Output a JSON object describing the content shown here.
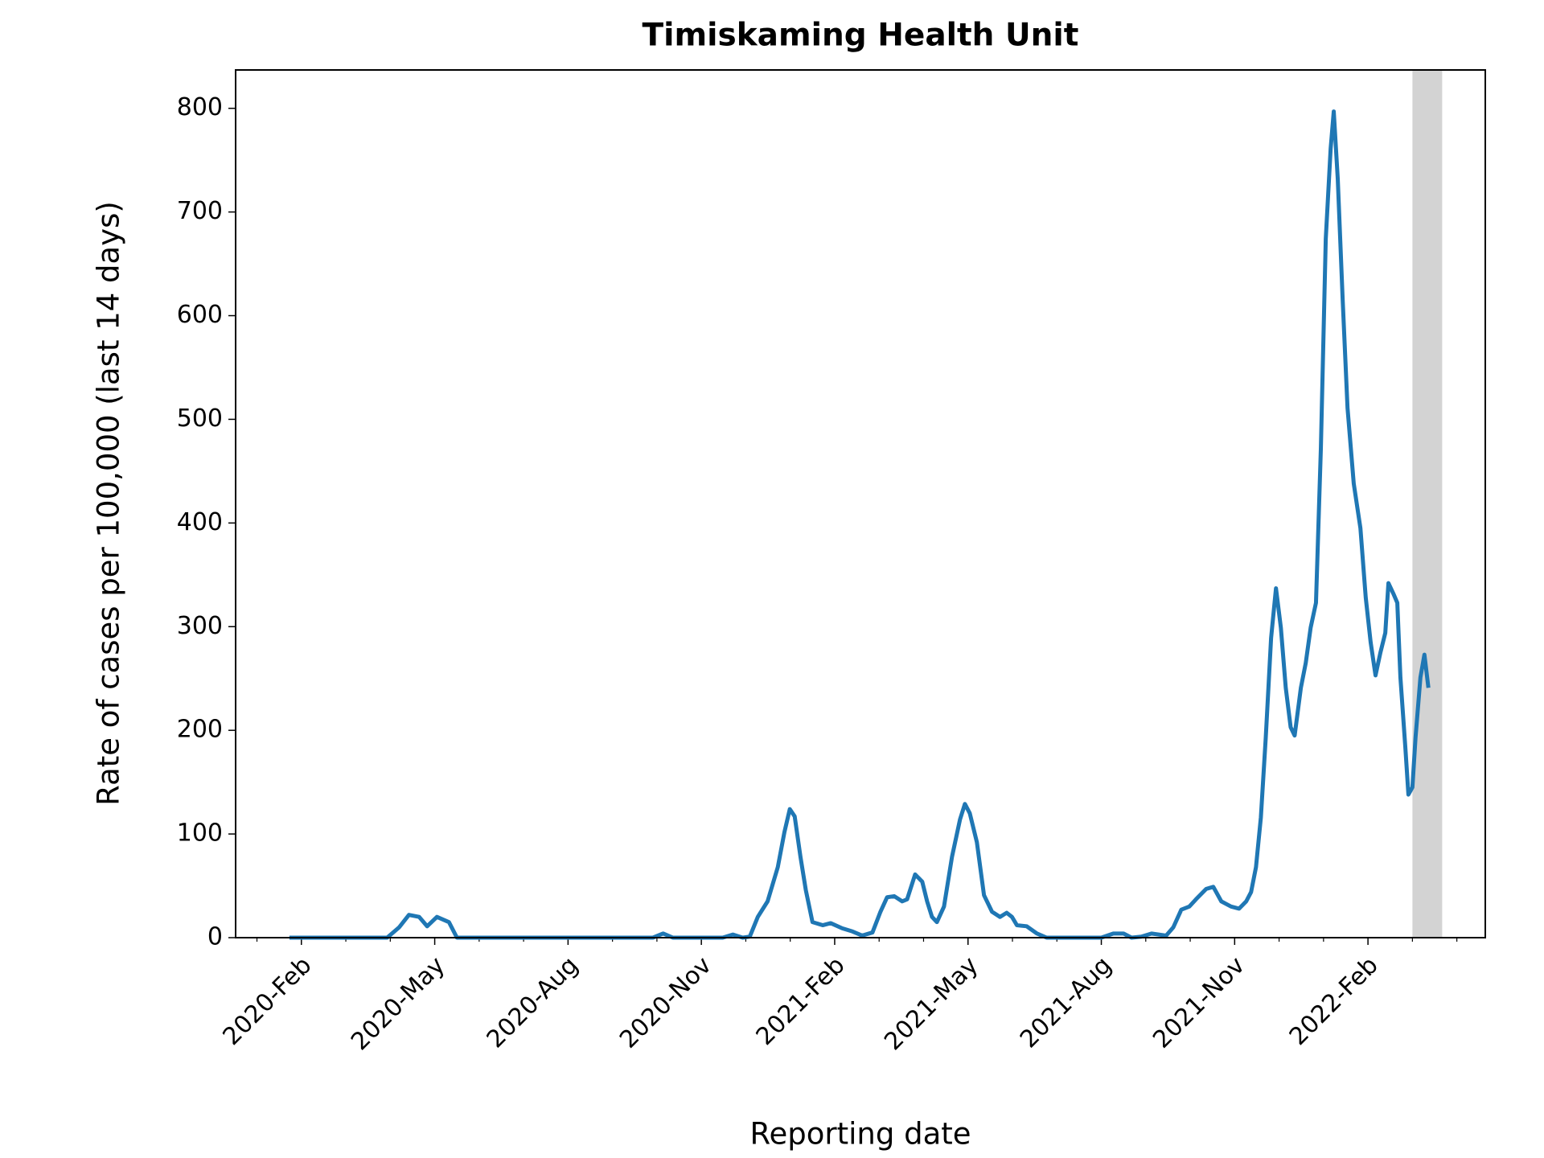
{
  "chart_data": {
    "type": "line",
    "title": "Timiskaming Health Unit",
    "xlabel": "Reporting date",
    "ylabel": "Rate of cases per 100,000 (last 14 days)",
    "color": "#1f77b4",
    "x": [
      0.73,
      2.93,
      3.2,
      3.42,
      3.65,
      3.83,
      4.05,
      4.32,
      4.5,
      8.91,
      9.14,
      9.36,
      10.48,
      10.71,
      10.93,
      11.09,
      11.27,
      11.49,
      11.72,
      11.87,
      11.99,
      12.1,
      12.23,
      12.35,
      12.5,
      12.73,
      12.91,
      13.17,
      13.4,
      13.62,
      13.85,
      14.03,
      14.18,
      14.34,
      14.52,
      14.63,
      14.81,
      14.97,
      15.08,
      15.19,
      15.3,
      15.46,
      15.64,
      15.82,
      15.93,
      16.04,
      16.2,
      16.36,
      16.54,
      16.72,
      16.87,
      16.99,
      17.1,
      17.32,
      17.55,
      17.77,
      19.0,
      19.27,
      19.5,
      19.68,
      19.9,
      20.13,
      20.46,
      20.62,
      20.8,
      20.98,
      21.13,
      21.36,
      21.52,
      21.7,
      21.92,
      22.1,
      22.26,
      22.37,
      22.48,
      22.59,
      22.7,
      22.82,
      22.93,
      23.04,
      23.15,
      23.26,
      23.35,
      23.49,
      23.6,
      23.71,
      23.83,
      23.94,
      24.05,
      24.16,
      24.23,
      24.32,
      24.43,
      24.54,
      24.68,
      24.83,
      24.95,
      25.06,
      25.17,
      25.28,
      25.39,
      25.46,
      25.57,
      25.66,
      25.73,
      25.84,
      25.91,
      26.0,
      26.07,
      26.18,
      26.27,
      26.36
    ],
    "values": [
      0,
      0,
      10,
      22,
      20,
      11,
      20,
      15,
      0,
      0,
      4,
      0,
      0,
      3,
      0,
      1,
      20,
      35,
      68,
      102,
      124,
      117,
      78,
      46,
      15,
      12,
      14,
      9,
      6,
      2,
      5,
      25,
      39,
      40,
      35,
      37,
      61,
      54,
      35,
      20,
      15,
      30,
      78,
      114,
      129,
      120,
      92,
      41,
      25,
      20,
      24,
      20,
      12,
      11,
      4,
      0,
      0,
      4,
      4,
      0,
      1,
      4,
      2,
      10,
      27,
      30,
      37,
      47,
      49,
      35,
      30,
      28,
      35,
      44,
      68,
      116,
      193,
      289,
      337,
      299,
      241,
      203,
      195,
      241,
      265,
      299,
      323,
      472,
      674,
      761,
      797,
      732,
      616,
      511,
      438,
      395,
      328,
      285,
      253,
      275,
      294,
      342,
      332,
      323,
      251,
      184,
      138,
      145,
      193,
      251,
      273,
      241
    ],
    "xlim": [
      -0.48,
      27.64
    ],
    "ylim": [
      0,
      837
    ],
    "xticks": [
      {
        "value": 1,
        "label": "2020-Feb"
      },
      {
        "value": 4,
        "label": "2020-May"
      },
      {
        "value": 7,
        "label": "2020-Aug"
      },
      {
        "value": 10,
        "label": "2020-Nov"
      },
      {
        "value": 13,
        "label": "2021-Feb"
      },
      {
        "value": 16,
        "label": "2021-May"
      },
      {
        "value": 19,
        "label": "2021-Aug"
      },
      {
        "value": 22,
        "label": "2021-Nov"
      },
      {
        "value": 25,
        "label": "2022-Feb"
      }
    ],
    "xminorticks": [
      0,
      2,
      3,
      5,
      6,
      8,
      9,
      11,
      12,
      14,
      15,
      17,
      18,
      20,
      21,
      23,
      24,
      26,
      27
    ],
    "yticks": [
      0,
      100,
      200,
      300,
      400,
      500,
      600,
      700,
      800
    ],
    "shaded_span": [
      26.0,
      26.67
    ],
    "shaded_color": "#d3d3d3"
  }
}
